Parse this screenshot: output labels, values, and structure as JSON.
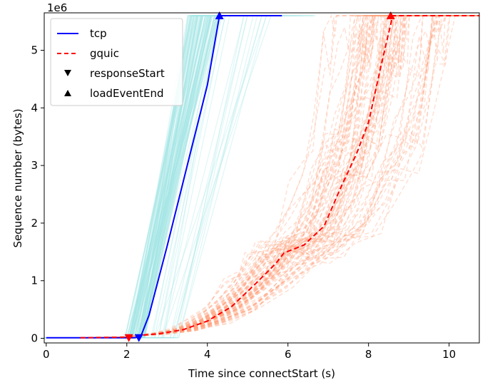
{
  "chart_data": {
    "type": "line",
    "title": "",
    "xlabel": "Time since connectStart (s)",
    "ylabel": "Sequence number (bytes)",
    "y_scale_label": "1e6",
    "xlim": [
      -0.05,
      10.75
    ],
    "ylim": [
      -0.08,
      5.65
    ],
    "y_unit_multiplier": 1000000,
    "xticks": [
      0,
      2,
      4,
      6,
      8,
      10
    ],
    "yticks": [
      0,
      1,
      2,
      3,
      4,
      5
    ],
    "grid": false,
    "legend_position": "top-left",
    "legend": [
      {
        "label": "tcp",
        "kind": "solid-line",
        "color": "#0000ff"
      },
      {
        "label": "gquic",
        "kind": "dashed-line",
        "color": "#ff0000"
      },
      {
        "label": "responseStart",
        "kind": "triangle-down-marker",
        "color": "#000000"
      },
      {
        "label": "loadEventEnd",
        "kind": "triangle-up-marker",
        "color": "#000000"
      }
    ],
    "series": [
      {
        "name": "tcp",
        "style": "solid",
        "color": "#0000ff",
        "x": [
          0,
          2.2,
          2.35,
          2.55,
          3.0,
          3.5,
          4.0,
          4.3,
          5.85
        ],
        "y": [
          0.01,
          0.01,
          0.04,
          0.4,
          1.6,
          3.0,
          4.4,
          5.6,
          5.6
        ],
        "responseStart": [
          2.3,
          0.01
        ],
        "loadEventEnd": [
          4.3,
          5.6
        ]
      },
      {
        "name": "gquic",
        "style": "dashed",
        "color": "#ff0000",
        "x": [
          0.85,
          2.0,
          2.3,
          2.8,
          3.4,
          4.0,
          4.6,
          5.2,
          5.7,
          5.9,
          6.4,
          6.9,
          7.3,
          7.7,
          8.0,
          8.3,
          8.5,
          8.6,
          10.75
        ],
        "y": [
          0.01,
          0.02,
          0.05,
          0.08,
          0.15,
          0.3,
          0.55,
          0.95,
          1.3,
          1.48,
          1.62,
          1.95,
          2.6,
          3.2,
          3.75,
          4.7,
          5.3,
          5.6,
          5.6
        ],
        "responseStart": [
          2.05,
          0.01
        ],
        "loadEventEnd": [
          8.55,
          5.6
        ]
      }
    ],
    "background_bundles": [
      {
        "name": "tcp",
        "color": "#a4e6e6",
        "count": 120
      },
      {
        "name": "gquic",
        "color": "#ffa07a",
        "count": 80
      }
    ]
  }
}
